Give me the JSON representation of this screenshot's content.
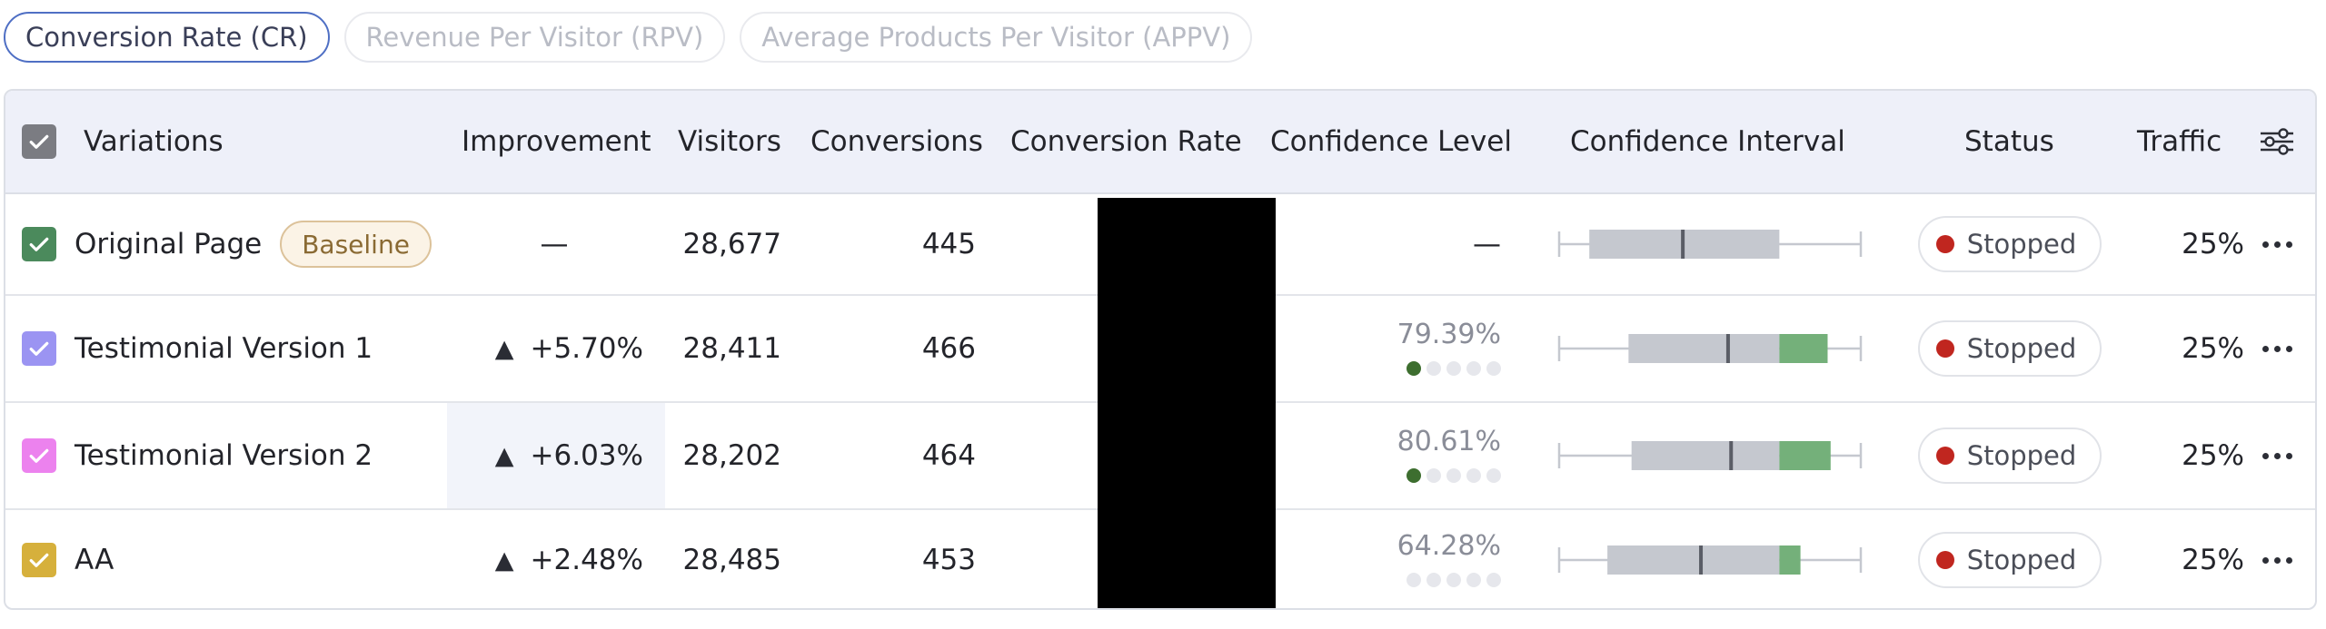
{
  "tabs": [
    {
      "label": "Conversion Rate (CR)",
      "active": true
    },
    {
      "label": "Revenue Per Visitor (RPV)",
      "active": false
    },
    {
      "label": "Average Products Per Visitor (APPV)",
      "active": false
    }
  ],
  "table": {
    "headers": {
      "variations": "Variations",
      "improvement": "Improvement",
      "visitors": "Visitors",
      "conversions": "Conversions",
      "conversion_rate": "Conversion Rate",
      "confidence_level": "Confidence Level",
      "confidence_interval": "Confidence Interval",
      "status": "Status",
      "traffic": "Traffic"
    },
    "rows": [
      {
        "name": "Original Page",
        "badge": "Baseline",
        "color": "#4b8a5c",
        "improvement": "—",
        "improvement_arrow": "",
        "visitors": "28,677",
        "conversions": "445",
        "confidence_text": "—",
        "confidence_dots": 0,
        "ci": {
          "box_start": 0.1,
          "box_end": 0.73,
          "median": 0.41,
          "green_end": 0.73
        },
        "status": "Stopped",
        "traffic": "25%"
      },
      {
        "name": "Testimonial Version 1",
        "badge": "",
        "color": "#9b94f2",
        "improvement": "+5.70%",
        "improvement_arrow": "▲",
        "visitors": "28,411",
        "conversions": "466",
        "confidence_text": "79.39%",
        "confidence_dots": 1,
        "ci": {
          "box_start": 0.23,
          "box_end": 0.73,
          "median": 0.56,
          "green_end": 0.89
        },
        "status": "Stopped",
        "traffic": "25%"
      },
      {
        "name": "Testimonial Version 2",
        "badge": "",
        "color": "#ec82ee",
        "improvement": "+6.03%",
        "improvement_arrow": "▲",
        "visitors": "28,202",
        "conversions": "464",
        "confidence_text": "80.61%",
        "confidence_dots": 1,
        "ci": {
          "box_start": 0.24,
          "box_end": 0.73,
          "median": 0.57,
          "green_end": 0.9
        },
        "status": "Stopped",
        "traffic": "25%"
      },
      {
        "name": "AA",
        "badge": "",
        "color": "#d6b03c",
        "improvement": "+2.48%",
        "improvement_arrow": "▲",
        "visitors": "28,485",
        "conversions": "453",
        "confidence_text": "64.28%",
        "confidence_dots": 0,
        "ci": {
          "box_start": 0.16,
          "box_end": 0.73,
          "median": 0.47,
          "green_end": 0.8
        },
        "status": "Stopped",
        "traffic": "25%"
      }
    ]
  },
  "colors": {
    "accent": "#4f6fc4",
    "ci_box": "#c5c8cf",
    "ci_green": "#74b07a",
    "status_stopped": "#c0261f",
    "dot_on": "#3d6e2f"
  },
  "icons": {
    "header_checkbox": "checkbox-icon",
    "column_settings": "sliders-icon",
    "more": "more-horizontal-icon"
  }
}
